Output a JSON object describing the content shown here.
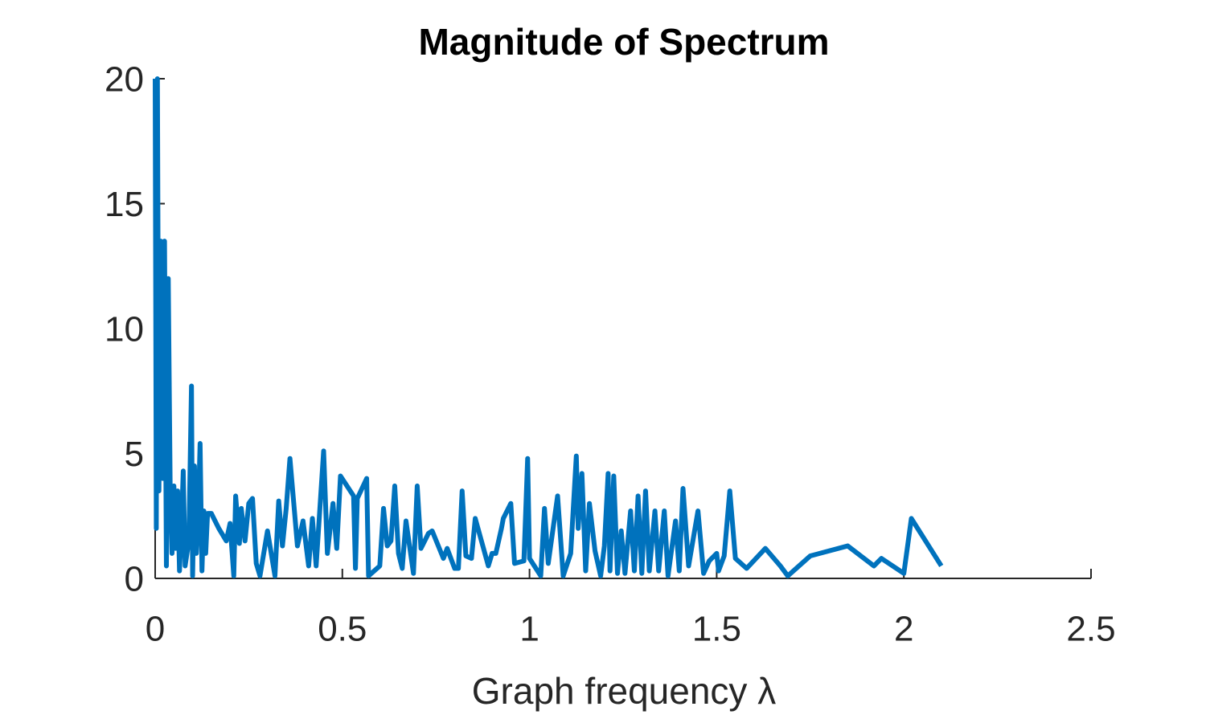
{
  "chart_data": {
    "type": "line",
    "title": "Magnitude of Spectrum",
    "x_label": "Graph frequency λ",
    "x": [
      0,
      0.003,
      0.006,
      0.01,
      0.015,
      0.02,
      0.025,
      0.03,
      0.035,
      0.04,
      0.045,
      0.05,
      0.055,
      0.06,
      0.065,
      0.07,
      0.075,
      0.08,
      0.09,
      0.097,
      0.1,
      0.105,
      0.11,
      0.115,
      0.12,
      0.125,
      0.13,
      0.135,
      0.14,
      0.15,
      0.17,
      0.19,
      0.2,
      0.21,
      0.215,
      0.225,
      0.23,
      0.24,
      0.25,
      0.26,
      0.27,
      0.28,
      0.3,
      0.32,
      0.33,
      0.34,
      0.35,
      0.36,
      0.38,
      0.395,
      0.41,
      0.42,
      0.43,
      0.45,
      0.46,
      0.475,
      0.485,
      0.495,
      0.53,
      0.535,
      0.54,
      0.565,
      0.57,
      0.6,
      0.61,
      0.62,
      0.63,
      0.64,
      0.65,
      0.66,
      0.67,
      0.69,
      0.7,
      0.71,
      0.73,
      0.74,
      0.77,
      0.78,
      0.8,
      0.81,
      0.82,
      0.83,
      0.845,
      0.855,
      0.89,
      0.9,
      0.91,
      0.925,
      0.93,
      0.95,
      0.96,
      0.985,
      0.995,
      1.0,
      1.03,
      1.04,
      1.05,
      1.075,
      1.09,
      1.11,
      1.125,
      1.13,
      1.14,
      1.15,
      1.16,
      1.175,
      1.19,
      1.2,
      1.21,
      1.215,
      1.225,
      1.235,
      1.245,
      1.255,
      1.27,
      1.28,
      1.29,
      1.3,
      1.31,
      1.32,
      1.335,
      1.345,
      1.36,
      1.37,
      1.39,
      1.4,
      1.41,
      1.425,
      1.45,
      1.465,
      1.48,
      1.5,
      1.505,
      1.52,
      1.535,
      1.55,
      1.58,
      1.63,
      1.67,
      1.69,
      1.75,
      1.85,
      1.92,
      1.94,
      2.0,
      2.02,
      2.1
    ],
    "series": [
      {
        "name": "Magnitude",
        "color": "#0072bd",
        "values": [
          20,
          2,
          20,
          3.5,
          13.5,
          4,
          13.5,
          0.5,
          12,
          3.8,
          1,
          3.7,
          1.2,
          3.5,
          0.3,
          2,
          4.3,
          0.5,
          1.5,
          7.7,
          0.1,
          4.5,
          1,
          2.5,
          5.4,
          0.3,
          2.7,
          1,
          2.6,
          2.6,
          2,
          1.5,
          2.2,
          0.1,
          3.3,
          1.4,
          2.8,
          1.5,
          3,
          3.2,
          0.6,
          0.1,
          1.9,
          0.1,
          3.1,
          1.3,
          2.8,
          4.8,
          1.3,
          2.3,
          0.5,
          2.4,
          0.5,
          5.1,
          1,
          3,
          1.2,
          4.1,
          3.3,
          0.4,
          3.2,
          4,
          0.1,
          0.5,
          2.8,
          1.3,
          1.5,
          3.7,
          1,
          0.4,
          2.3,
          0.2,
          3.7,
          1.2,
          1.8,
          1.9,
          0.8,
          1.2,
          0.4,
          0.4,
          3.5,
          0.9,
          0.8,
          2.4,
          0.5,
          1,
          1,
          2,
          2.4,
          3,
          0.6,
          0.7,
          4.8,
          0.8,
          0.1,
          2.8,
          0.6,
          3.3,
          0.1,
          1,
          4.9,
          2,
          4.2,
          0.3,
          3,
          1.1,
          0.1,
          1.3,
          4.2,
          0.3,
          4.1,
          0.2,
          1.9,
          0.2,
          2.7,
          0.3,
          3.3,
          0.2,
          3.5,
          0.3,
          2.7,
          0.3,
          2.7,
          0.1,
          2.3,
          0.3,
          3.6,
          0.5,
          2.7,
          0.2,
          0.7,
          1,
          0.3,
          0.9,
          3.5,
          0.8,
          0.4,
          1.2,
          0.5,
          0.1,
          0.9,
          1.3,
          0.5,
          0.8,
          0.2,
          2.4,
          0.5
        ]
      }
    ],
    "xlim": [
      0,
      2.5
    ],
    "ylim": [
      0,
      20
    ],
    "xticks": [
      0,
      0.5,
      1,
      1.5,
      2,
      2.5
    ],
    "yticks": [
      0,
      5,
      10,
      15,
      20
    ],
    "grid": false
  }
}
